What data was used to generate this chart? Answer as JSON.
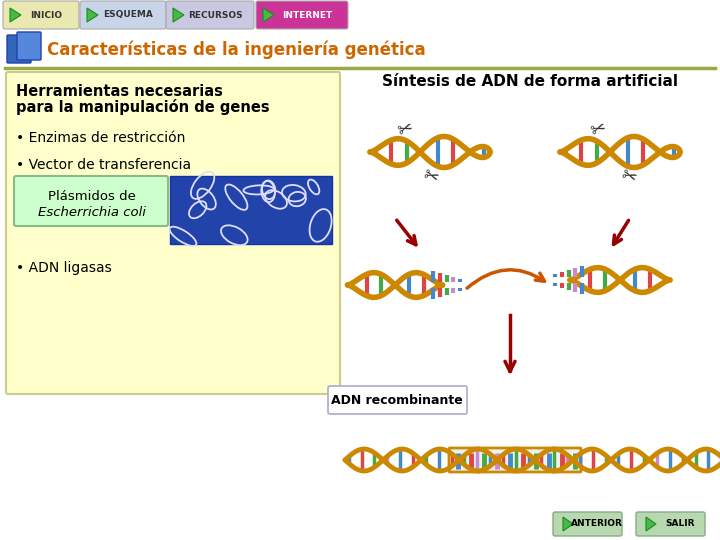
{
  "bg_color": "#ffffff",
  "nav_labels": [
    "INICIO",
    "ESQUEMA",
    "RECURSOS",
    "INTERNET"
  ],
  "nav_colors": [
    "#e8e8b0",
    "#c8d4e8",
    "#c8c8e0",
    "#cc3399"
  ],
  "nav_text_colors": [
    "#333333",
    "#333333",
    "#333333",
    "#ffffff"
  ],
  "title": "Características de la ingeniería genética",
  "title_color": "#cc6600",
  "line_color": "#99aa44",
  "left_box_bg": "#ffffcc",
  "left_box_title1": "Herramientas necesarias",
  "left_box_title2": "para la manipulación de genes",
  "bullet1": "• Enzimas de restricción",
  "bullet2": "• Vector de transferencia",
  "plasmid_box_bg": "#ccffcc",
  "plasmid_line1": "Plásmidos de",
  "plasmid_line2": "Escherrichia coli",
  "bullet3": "• ADN ligasas",
  "right_title": "Síntesis de ADN de forma artificial",
  "recombinant_label": "ADN recombinante",
  "footer_anterior": "ANTERIOR",
  "footer_salir": "SALIR",
  "arrow_dark": "#990000",
  "dna_backbone": "#cc8800",
  "dna_colors": [
    "#4488cc",
    "#dd4444",
    "#44aa44",
    "#cc88cc",
    "#4488cc",
    "#dd4444",
    "#44aa44"
  ],
  "scissors_color": "#222222"
}
